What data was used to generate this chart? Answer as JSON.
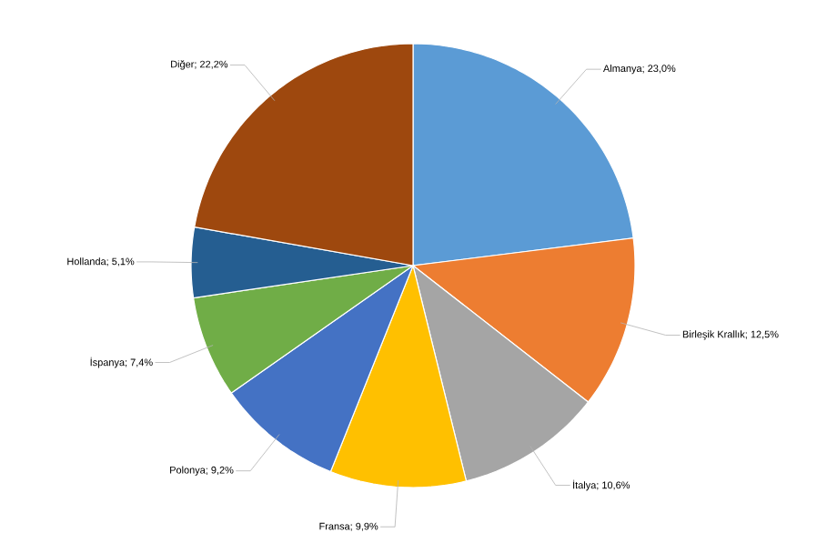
{
  "chart_data": {
    "type": "pie",
    "categories": [
      "Almanya",
      "Birleşik Krallık",
      "İtalya",
      "Fransa",
      "Polonya",
      "İspanya",
      "Hollanda",
      "Diğer"
    ],
    "values": [
      23.0,
      12.5,
      10.6,
      9.9,
      9.2,
      7.4,
      5.1,
      22.2
    ],
    "value_labels": [
      "; 23,0%",
      "; 12,5%",
      "; 10,6%",
      "; 9,9%",
      "; 9,2%",
      "; 7,4%",
      "; 5,1%",
      "; 22,2%"
    ],
    "colors": [
      "#5b9bd5",
      "#ed7d31",
      "#a5a5a5",
      "#ffc000",
      "#4472c4",
      "#70ad47",
      "#255e91",
      "#9e480e"
    ]
  }
}
